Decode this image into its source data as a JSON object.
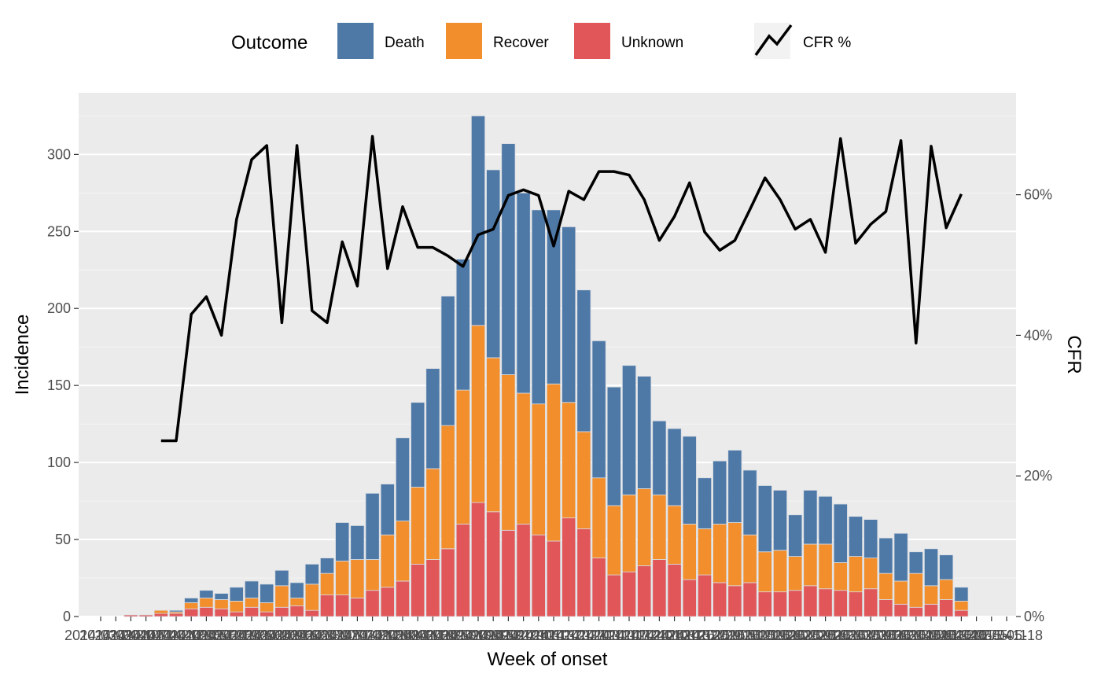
{
  "chart_data": {
    "type": "bar",
    "stacked": true,
    "xlabel": "Week of onset",
    "ylabel": "Incidence",
    "y2label": "CFR",
    "ylim": [
      0,
      340
    ],
    "y2lim": [
      0,
      74.5
    ],
    "yticks": [
      0,
      50,
      100,
      150,
      200,
      250,
      300
    ],
    "y2ticks": [
      0,
      20,
      40,
      60
    ],
    "y2tick_suffix": "%",
    "xtick_first": "2014-03-24",
    "xtick_last": "2015-05-18",
    "xtick_labels": [
      "2014-03-24",
      "2014-03-31",
      "2014-04-07",
      "2014-04-14",
      "2014-04-21",
      "2014-04-28",
      "2014-05-05",
      "2014-05-12",
      "2014-05-19",
      "2014-05-26",
      "2014-06-02",
      "2014-06-09",
      "2014-06-16",
      "2014-06-23",
      "2014-06-30",
      "2014-07-07",
      "2014-07-14",
      "2014-07-21",
      "2014-07-28",
      "2014-08-04",
      "2014-08-11",
      "2014-08-18",
      "2014-08-25",
      "2014-09-01",
      "2014-09-08",
      "2014-09-15",
      "2014-09-22",
      "2014-09-29",
      "2014-10-06",
      "2014-10-13",
      "2014-10-20",
      "2014-10-27",
      "2014-11-03",
      "2014-11-10",
      "2014-11-17",
      "2014-11-24",
      "2014-12-01",
      "2014-12-08",
      "2014-12-15",
      "2014-12-22",
      "2014-12-29",
      "2015-01-05",
      "2015-01-12",
      "2015-01-19",
      "2015-01-26",
      "2015-02-02",
      "2015-02-09",
      "2015-02-16",
      "2015-02-23",
      "2015-03-02",
      "2015-03-09",
      "2015-03-16",
      "2015-03-23",
      "2015-03-30",
      "2015-04-06",
      "2015-04-13",
      "2015-04-20",
      "2015-04-27",
      "2015-05-04",
      "2015-05-11",
      "2015-05-18"
    ],
    "categories": [
      "2014-04-07",
      "2014-04-14",
      "2014-04-21",
      "2014-04-28",
      "2014-05-05",
      "2014-05-12",
      "2014-05-19",
      "2014-05-26",
      "2014-06-02",
      "2014-06-09",
      "2014-06-16",
      "2014-06-23",
      "2014-06-30",
      "2014-07-07",
      "2014-07-14",
      "2014-07-21",
      "2014-07-28",
      "2014-08-04",
      "2014-08-11",
      "2014-08-18",
      "2014-08-25",
      "2014-09-01",
      "2014-09-08",
      "2014-09-15",
      "2014-09-22",
      "2014-09-29",
      "2014-10-06",
      "2014-10-13",
      "2014-10-20",
      "2014-10-27",
      "2014-11-03",
      "2014-11-10",
      "2014-11-17",
      "2014-11-24",
      "2014-12-01",
      "2014-12-08",
      "2014-12-15",
      "2014-12-22",
      "2014-12-29",
      "2015-01-05",
      "2015-01-12",
      "2015-01-19",
      "2015-01-26",
      "2015-02-02",
      "2015-02-09",
      "2015-02-16",
      "2015-02-23",
      "2015-03-02",
      "2015-03-09",
      "2015-03-16",
      "2015-03-23",
      "2015-03-30",
      "2015-04-06",
      "2015-04-13",
      "2015-04-20",
      "2015-04-27"
    ],
    "series": [
      {
        "name": "Unknown",
        "color": "#E15759",
        "values": [
          1,
          1,
          2,
          2,
          5,
          6,
          5,
          3,
          6,
          3,
          6,
          7,
          4,
          14,
          14,
          12,
          17,
          19,
          23,
          34,
          37,
          44,
          60,
          74,
          68,
          56,
          60,
          53,
          49,
          64,
          57,
          38,
          27,
          29,
          33,
          37,
          34,
          24,
          27,
          22,
          20,
          22,
          16,
          16,
          17,
          20,
          18,
          17,
          16,
          18,
          11,
          8,
          6,
          8,
          11,
          4
        ]
      },
      {
        "name": "Recover",
        "color": "#F28E2B",
        "values": [
          0,
          0,
          2,
          1,
          4,
          6,
          6,
          7,
          6,
          6,
          14,
          5,
          17,
          14,
          22,
          25,
          20,
          34,
          39,
          50,
          59,
          80,
          87,
          115,
          100,
          101,
          85,
          85,
          102,
          75,
          63,
          52,
          45,
          50,
          50,
          42,
          38,
          36,
          30,
          38,
          41,
          31,
          26,
          27,
          22,
          27,
          29,
          18,
          23,
          20,
          17,
          15,
          22,
          12,
          13,
          6
        ]
      },
      {
        "name": "Death",
        "color": "#4E79A7",
        "values": [
          0,
          0,
          0,
          1,
          3,
          5,
          4,
          9,
          11,
          12,
          10,
          10,
          13,
          10,
          25,
          22,
          43,
          33,
          54,
          55,
          65,
          84,
          85,
          136,
          122,
          150,
          130,
          126,
          113,
          114,
          92,
          89,
          77,
          84,
          73,
          48,
          50,
          57,
          33,
          41,
          47,
          42,
          43,
          39,
          27,
          35,
          31,
          38,
          26,
          25,
          23,
          31,
          14,
          24,
          16,
          9
        ]
      }
    ],
    "line": {
      "name": "CFR %",
      "color": "#000000",
      "x_start": "2014-04-21",
      "values": [
        25,
        25,
        43,
        45.5,
        40,
        56.5,
        65,
        67,
        41.8,
        67,
        43.5,
        41.8,
        53.3,
        47,
        68.3,
        49.5,
        58.3,
        52.5,
        52.5,
        51.3,
        49.8,
        54.3,
        55.1,
        59.9,
        60.7,
        59.9,
        52.7,
        60.5,
        59.3,
        63.3,
        63.3,
        62.8,
        59.3,
        53.5,
        56.9,
        61.7,
        54.7,
        52.1,
        53.5,
        57.9,
        62.4,
        59.3,
        55.1,
        56.5,
        51.8,
        68,
        53.1,
        55.8,
        57.6,
        67.7,
        38.9,
        66.9,
        55.3,
        60.1
      ]
    },
    "legend": {
      "position": "top",
      "title": "Outcome",
      "items": [
        "Death",
        "Recover",
        "Unknown"
      ],
      "line_item": "CFR %"
    },
    "grid": true
  }
}
